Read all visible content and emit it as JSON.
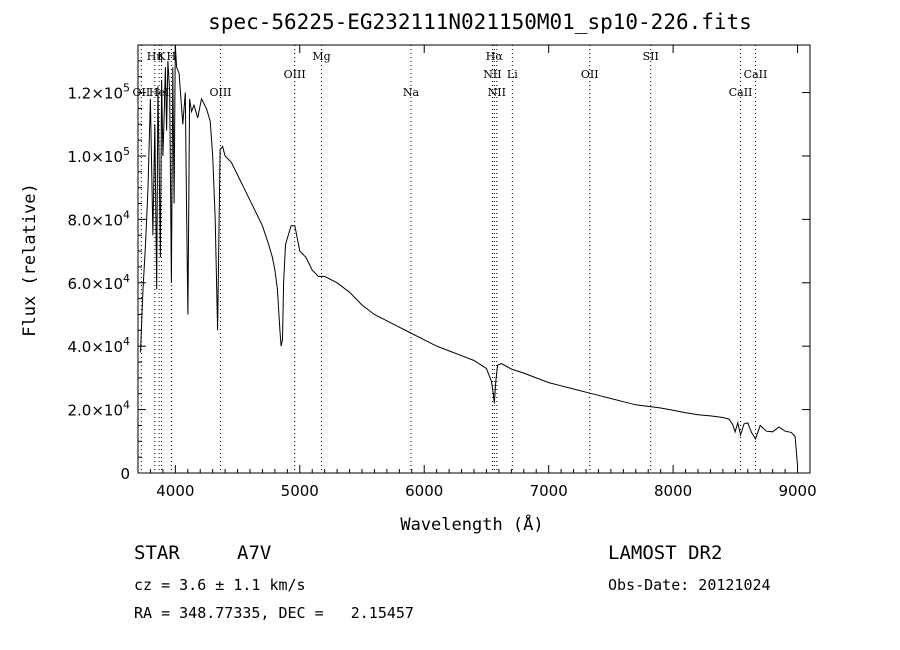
{
  "chart_data": {
    "type": "line",
    "title": "spec-56225-EG232111N021150M01_sp10-226.fits",
    "xlabel": "Wavelength (Å)",
    "ylabel": "Flux (relative)",
    "xlim": [
      3700,
      9100
    ],
    "ylim": [
      0,
      135000
    ],
    "x_ticks": [
      {
        "value": 4000,
        "label": "4000"
      },
      {
        "value": 5000,
        "label": "5000"
      },
      {
        "value": 6000,
        "label": "6000"
      },
      {
        "value": 7000,
        "label": "7000"
      },
      {
        "value": 8000,
        "label": "8000"
      },
      {
        "value": 9000,
        "label": "9000"
      }
    ],
    "y_ticks": [
      {
        "value": 0,
        "mant": "0",
        "exp": ""
      },
      {
        "value": 20000,
        "mant": "2.0×10",
        "exp": "4"
      },
      {
        "value": 40000,
        "mant": "4.0×10",
        "exp": "4"
      },
      {
        "value": 60000,
        "mant": "6.0×10",
        "exp": "4"
      },
      {
        "value": 80000,
        "mant": "8.0×10",
        "exp": "4"
      },
      {
        "value": 100000,
        "mant": "1.0×10",
        "exp": "5"
      },
      {
        "value": 120000,
        "mant": "1.2×10",
        "exp": "5"
      }
    ],
    "series": [
      {
        "x": [
          3720,
          3740,
          3760,
          3780,
          3800,
          3820,
          3835,
          3850,
          3860,
          3870,
          3880,
          3890,
          3900,
          3910,
          3920,
          3930,
          3940,
          3955,
          3968,
          3980,
          3990,
          4000,
          4010,
          4030,
          4060,
          4080,
          4090,
          4101,
          4115,
          4130,
          4150,
          4180,
          4210,
          4250,
          4280,
          4300,
          4320,
          4340,
          4360,
          4380,
          4400,
          4450,
          4500,
          4550,
          4600,
          4650,
          4700,
          4750,
          4780,
          4800,
          4820,
          4840,
          4850,
          4861,
          4870,
          4885,
          4900,
          4930,
          4960,
          5000,
          5050,
          5100,
          5150,
          5200,
          5300,
          5400,
          5500,
          5600,
          5700,
          5800,
          5900,
          6000,
          6100,
          6200,
          6300,
          6400,
          6500,
          6540,
          6555,
          6563,
          6575,
          6590,
          6620,
          6700,
          6800,
          6900,
          7000,
          7100,
          7200,
          7300,
          7400,
          7500,
          7600,
          7700,
          7800,
          7900,
          8000,
          8100,
          8200,
          8300,
          8400,
          8450,
          8480,
          8498,
          8520,
          8542,
          8570,
          8600,
          8630,
          8662,
          8700,
          8750,
          8800,
          8850,
          8900,
          8950,
          8980,
          9000
        ],
        "y": [
          38000,
          58000,
          72000,
          90000,
          118000,
          75000,
          110000,
          58000,
          122000,
          96000,
          68000,
          124000,
          100000,
          112000,
          128000,
          108000,
          130000,
          120000,
          60000,
          128000,
          85000,
          135000,
          128000,
          126000,
          110000,
          120000,
          85000,
          50000,
          118000,
          114000,
          116000,
          112000,
          118000,
          115000,
          111000,
          100000,
          80000,
          45000,
          102000,
          103000,
          100000,
          98000,
          94000,
          90000,
          86000,
          82000,
          78000,
          72000,
          68000,
          64000,
          58000,
          45000,
          40000,
          42000,
          60000,
          72000,
          74000,
          78000,
          78000,
          70000,
          68000,
          64000,
          62000,
          62000,
          60000,
          57000,
          53000,
          50000,
          48000,
          46000,
          44000,
          42000,
          40000,
          38500,
          37000,
          35500,
          33000,
          29000,
          25000,
          22000,
          29000,
          34000,
          34500,
          32800,
          31500,
          30000,
          28500,
          27500,
          26500,
          25500,
          24500,
          23500,
          22500,
          21500,
          21000,
          20500,
          19800,
          19000,
          18400,
          18000,
          17500,
          17000,
          15200,
          13000,
          15800,
          12000,
          15500,
          15800,
          12800,
          10800,
          15000,
          13200,
          13000,
          14500,
          13200,
          12800,
          11500,
          2000
        ]
      }
    ],
    "lines_top": [
      {
        "wl": 3835,
        "label": "Hη"
      },
      {
        "wl": 3889,
        "label": "K"
      },
      {
        "wl": 3968,
        "label": "H"
      },
      {
        "wl": 5175,
        "label": "Mg"
      },
      {
        "wl": 6563,
        "label": "Hα"
      },
      {
        "wl": 7820,
        "label": "SII"
      }
    ],
    "lines_mid": [
      {
        "wl": 4959,
        "label": "OIII"
      },
      {
        "wl": 6548,
        "label": "NII"
      },
      {
        "wl": 6708,
        "label": "Li"
      },
      {
        "wl": 7330,
        "label": "OII"
      },
      {
        "wl": 8662,
        "label": "CaII"
      }
    ],
    "lines_low": [
      {
        "wl": 3727,
        "label": "OII"
      },
      {
        "wl": 3870,
        "label": "HeI"
      },
      {
        "wl": 4363,
        "label": "OIII"
      },
      {
        "wl": 5893,
        "label": "Na"
      },
      {
        "wl": 6583,
        "label": "NII"
      },
      {
        "wl": 8542,
        "label": "CaII"
      }
    ]
  },
  "info": {
    "class": "STAR",
    "subclass": "A7V",
    "survey": "LAMOST DR2",
    "cz": "cz = 3.6 ± 1.1 km/s",
    "obs_date": "Obs-Date: 20121024",
    "radec": "RA = 348.77335, DEC =   2.15457"
  }
}
